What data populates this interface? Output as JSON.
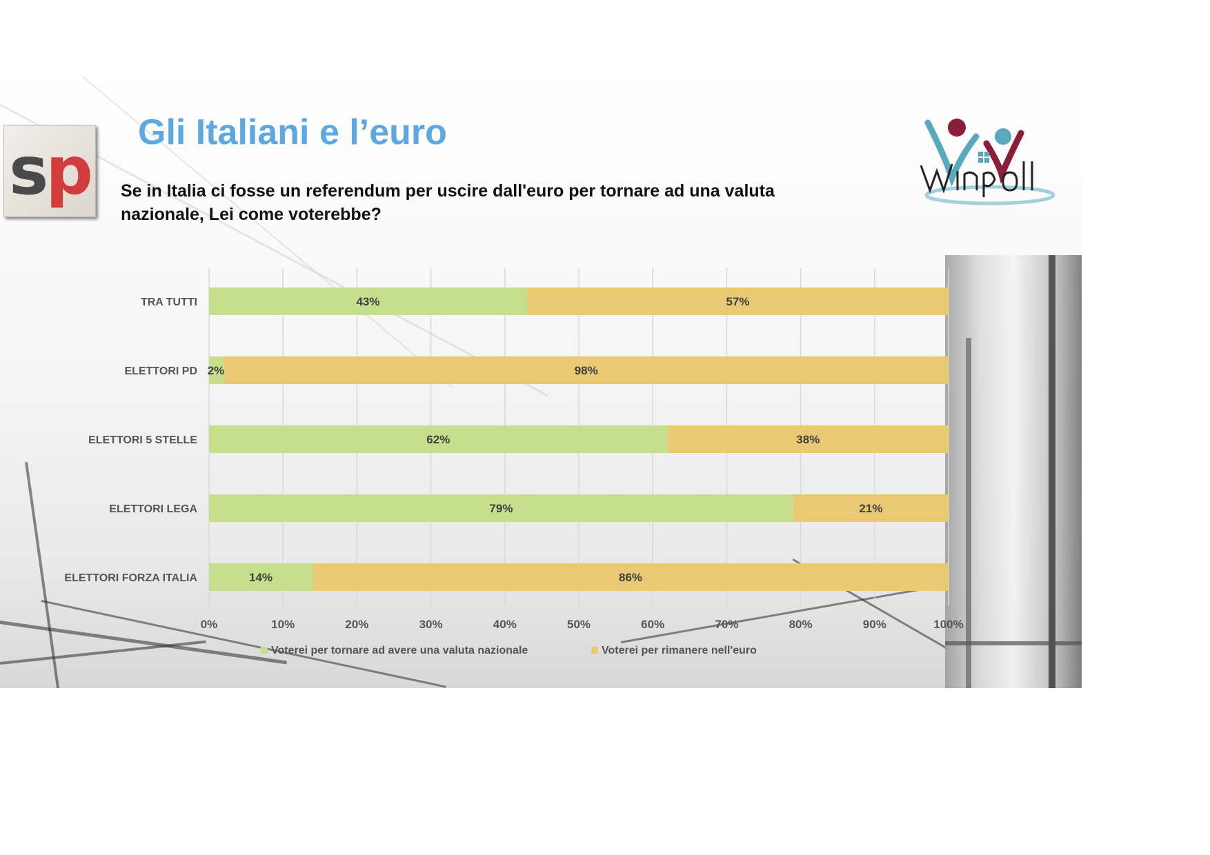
{
  "header": {
    "title": "Gli Italiani e l’euro",
    "question": "Se in Italia ci fosse un referendum per uscire dall'euro per tornare ad una valuta nazionale, Lei come voterebbe?"
  },
  "logos": {
    "left_logo_text": "sp",
    "right_logo_text": "winpoll"
  },
  "colors": {
    "title_blue": "#5ea8e2",
    "series_green": "#c5df8d",
    "series_yellow": "#e9c973",
    "sp_red": "#d23c3c"
  },
  "chart_data": {
    "type": "bar",
    "orientation": "horizontal",
    "stacked": true,
    "categories": [
      "TRA TUTTI",
      "ELETTORI PD",
      "ELETTORI 5 STELLE",
      "ELETTORI LEGA",
      "ELETTORI FORZA ITALIA"
    ],
    "series": [
      {
        "name": "Voterei per tornare ad avere una valuta nazionale",
        "values": [
          43,
          2,
          62,
          79,
          14
        ],
        "labels": [
          "43%",
          "2%",
          "62%",
          "79%",
          "14%"
        ],
        "color": "#c5df8d"
      },
      {
        "name": "Voterei per rimanere nell'euro",
        "values": [
          57,
          98,
          38,
          21,
          86
        ],
        "labels": [
          "57%",
          "98%",
          "38%",
          "21%",
          "86%"
        ],
        "color": "#e9c973"
      }
    ],
    "xlim": [
      0,
      100
    ],
    "xticks": [
      "0%",
      "10%",
      "20%",
      "30%",
      "40%",
      "50%",
      "60%",
      "70%",
      "80%",
      "90%",
      "100%"
    ],
    "grid": true,
    "legend_position": "bottom"
  }
}
